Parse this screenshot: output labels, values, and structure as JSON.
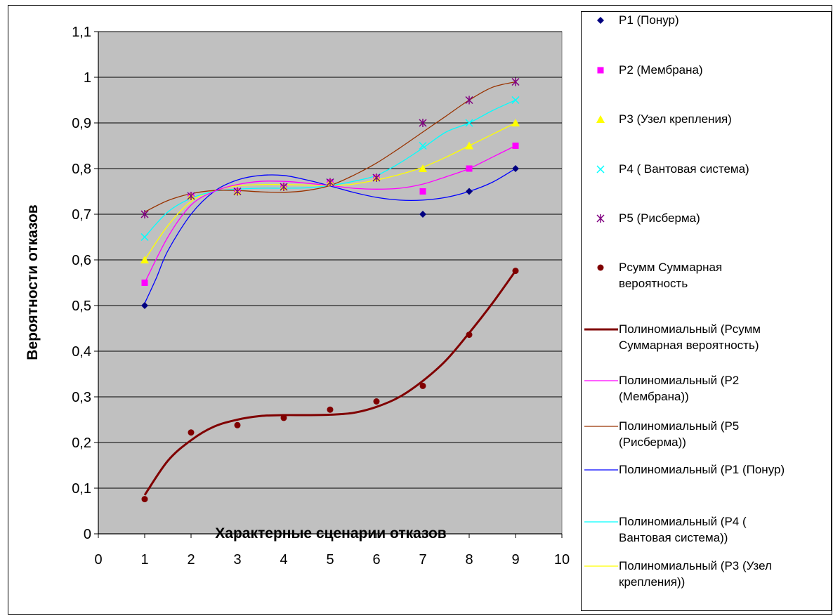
{
  "chart_data": {
    "type": "scatter",
    "xlabel": "Характерные сценарии отказов",
    "ylabel": "Вероятности отказов",
    "xlim": [
      0,
      10
    ],
    "ylim": [
      0,
      1.1
    ],
    "x_ticks": [
      "0",
      "1",
      "2",
      "3",
      "4",
      "5",
      "6",
      "7",
      "8",
      "9",
      "10"
    ],
    "y_ticks": [
      "0",
      "0,1",
      "0,2",
      "0,3",
      "0,4",
      "0,5",
      "0,6",
      "0,7",
      "0,8",
      "0,9",
      "1",
      "1,1"
    ],
    "grid": "horizontal",
    "plot_background": "#c0c0c0",
    "legend_position": "right",
    "series": [
      {
        "name": "P1  (Понур)",
        "marker": "diamond",
        "color": "#000080",
        "x": [
          1,
          2,
          3,
          4,
          5,
          6,
          7,
          8,
          9
        ],
        "values": [
          0.5,
          0.74,
          0.75,
          0.76,
          0.77,
          0.78,
          0.7,
          0.75,
          0.8
        ]
      },
      {
        "name": "P2 (Мембрана)",
        "marker": "square",
        "color": "#ff00ff",
        "x": [
          1,
          2,
          3,
          4,
          5,
          6,
          7,
          8,
          9
        ],
        "values": [
          0.55,
          0.74,
          0.75,
          0.76,
          0.77,
          0.78,
          0.75,
          0.8,
          0.85
        ]
      },
      {
        "name": "P3  (Узел крепления)",
        "marker": "triangle",
        "color": "#ffff00",
        "x": [
          1,
          2,
          3,
          4,
          5,
          6,
          7,
          8,
          9
        ],
        "values": [
          0.6,
          0.74,
          0.75,
          0.76,
          0.77,
          0.78,
          0.8,
          0.85,
          0.9
        ]
      },
      {
        "name": "P4 ( Вантовая система)",
        "marker": "x",
        "color": "#00ffff",
        "x": [
          1,
          2,
          3,
          4,
          5,
          6,
          7,
          8,
          9
        ],
        "values": [
          0.65,
          0.74,
          0.75,
          0.76,
          0.77,
          0.78,
          0.85,
          0.9,
          0.95
        ]
      },
      {
        "name": "P5 (Рисберма)",
        "marker": "star",
        "color": "#800080",
        "x": [
          1,
          2,
          3,
          4,
          5,
          6,
          7,
          8,
          9
        ],
        "values": [
          0.7,
          0.74,
          0.75,
          0.76,
          0.77,
          0.78,
          0.9,
          0.95,
          0.99
        ]
      },
      {
        "name": "Pсумм Суммарная вероятность",
        "marker": "circle",
        "color": "#800000",
        "x": [
          1,
          2,
          3,
          4,
          5,
          6,
          7,
          8,
          9
        ],
        "values": [
          0.076,
          0.222,
          0.238,
          0.254,
          0.272,
          0.29,
          0.324,
          0.436,
          0.576
        ]
      }
    ],
    "trendlines": [
      {
        "name": "Полиномиальный (Pсумм Суммарная вероятность)",
        "color": "#800000",
        "width": 3,
        "x": [
          1,
          1.5,
          2,
          2.5,
          3,
          3.5,
          4,
          4.5,
          5,
          5.5,
          6,
          6.5,
          7,
          7.5,
          8,
          8.5,
          9
        ],
        "values": [
          0.085,
          0.16,
          0.205,
          0.235,
          0.25,
          0.258,
          0.26,
          0.26,
          0.261,
          0.265,
          0.278,
          0.3,
          0.335,
          0.38,
          0.44,
          0.505,
          0.576
        ]
      },
      {
        "name": "Полиномиальный (P2 (Мембрана))",
        "color": "#ff00ff",
        "width": 1.3,
        "x": [
          1,
          1.5,
          2,
          2.5,
          3,
          3.5,
          4,
          4.5,
          5,
          5.5,
          6,
          6.5,
          7,
          7.5,
          8,
          8.5,
          9
        ],
        "values": [
          0.55,
          0.65,
          0.72,
          0.75,
          0.765,
          0.772,
          0.772,
          0.768,
          0.763,
          0.757,
          0.755,
          0.757,
          0.766,
          0.782,
          0.8,
          0.825,
          0.85
        ]
      },
      {
        "name": "Полиномиальный (P5 (Рисберма))",
        "color": "#993300",
        "width": 1.3,
        "x": [
          1,
          1.5,
          2,
          2.5,
          3,
          3.5,
          4,
          4.5,
          5,
          5.5,
          6,
          6.5,
          7,
          7.5,
          8,
          8.5,
          9
        ],
        "values": [
          0.705,
          0.73,
          0.745,
          0.752,
          0.752,
          0.749,
          0.748,
          0.752,
          0.763,
          0.785,
          0.812,
          0.845,
          0.88,
          0.915,
          0.95,
          0.978,
          0.99
        ]
      },
      {
        "name": "Полиномиальный (P1  (Понур))",
        "color": "#0000ff",
        "width": 1.3,
        "x": [
          1,
          1.25,
          1.5,
          2,
          2.5,
          3,
          3.5,
          4,
          4.5,
          5,
          5.5,
          6,
          6.5,
          7,
          7.5,
          8,
          8.5,
          9
        ],
        "values": [
          0.505,
          0.56,
          0.62,
          0.7,
          0.75,
          0.775,
          0.785,
          0.785,
          0.775,
          0.762,
          0.748,
          0.737,
          0.731,
          0.731,
          0.737,
          0.75,
          0.77,
          0.8
        ]
      },
      {
        "name": "Полиномиальный (P4 ( Вантовая система))",
        "color": "#00ffff",
        "width": 1.3,
        "x": [
          1,
          1.5,
          2,
          2.5,
          3,
          3.5,
          4,
          4.5,
          5,
          5.5,
          6,
          6.5,
          7,
          7.5,
          8,
          8.5,
          9
        ],
        "values": [
          0.65,
          0.705,
          0.735,
          0.75,
          0.755,
          0.757,
          0.757,
          0.758,
          0.763,
          0.772,
          0.785,
          0.812,
          0.845,
          0.88,
          0.9,
          0.927,
          0.95
        ]
      },
      {
        "name": "Полиномиальный (P3  (Узел крепления))",
        "color": "#ffff00",
        "width": 1.3,
        "x": [
          1,
          1.5,
          2,
          2.5,
          3,
          3.5,
          4,
          4.5,
          5,
          5.5,
          6,
          6.5,
          7,
          7.5,
          8,
          8.5,
          9
        ],
        "values": [
          0.6,
          0.675,
          0.728,
          0.752,
          0.762,
          0.765,
          0.765,
          0.764,
          0.763,
          0.766,
          0.775,
          0.787,
          0.803,
          0.825,
          0.85,
          0.875,
          0.9
        ]
      }
    ]
  },
  "legend": {
    "items": [
      {
        "text": "P1  (Понур)",
        "kind": "marker",
        "marker": "diamond",
        "color": "#000080"
      },
      {
        "text": "P2 (Мембрана)",
        "kind": "marker",
        "marker": "square",
        "color": "#ff00ff"
      },
      {
        "text": "P3  (Узел крепления)",
        "kind": "marker",
        "marker": "triangle",
        "color": "#ffff00"
      },
      {
        "text": "P4 ( Вантовая система)",
        "kind": "marker",
        "marker": "x",
        "color": "#00ffff"
      },
      {
        "text": "P5 (Рисберма)",
        "kind": "marker",
        "marker": "star",
        "color": "#800080"
      },
      {
        "text": "Pсумм Суммарная\nвероятность",
        "kind": "marker",
        "marker": "circle",
        "color": "#800000"
      },
      {
        "text": "Полиномиальный (Pсумм\nСуммарная вероятность)",
        "kind": "line",
        "color": "#800000",
        "width": 3
      },
      {
        "text": "Полиномиальный (P2\n(Мембрана))",
        "kind": "line",
        "color": "#ff00ff",
        "width": 1.3
      },
      {
        "text": "Полиномиальный (P5\n(Рисберма))",
        "kind": "line",
        "color": "#993300",
        "width": 1.3
      },
      {
        "text": "Полиномиальный (P1  (Понур)",
        "kind": "line",
        "color": "#0000ff",
        "width": 1.3
      },
      {
        "text": "Полиномиальный (P4 (\nВантовая система))",
        "kind": "line",
        "color": "#00ffff",
        "width": 1.3
      },
      {
        "text": "Полиномиальный (P3  (Узел\nкрепления))",
        "kind": "line",
        "color": "#ffff00",
        "width": 1.3
      }
    ]
  }
}
